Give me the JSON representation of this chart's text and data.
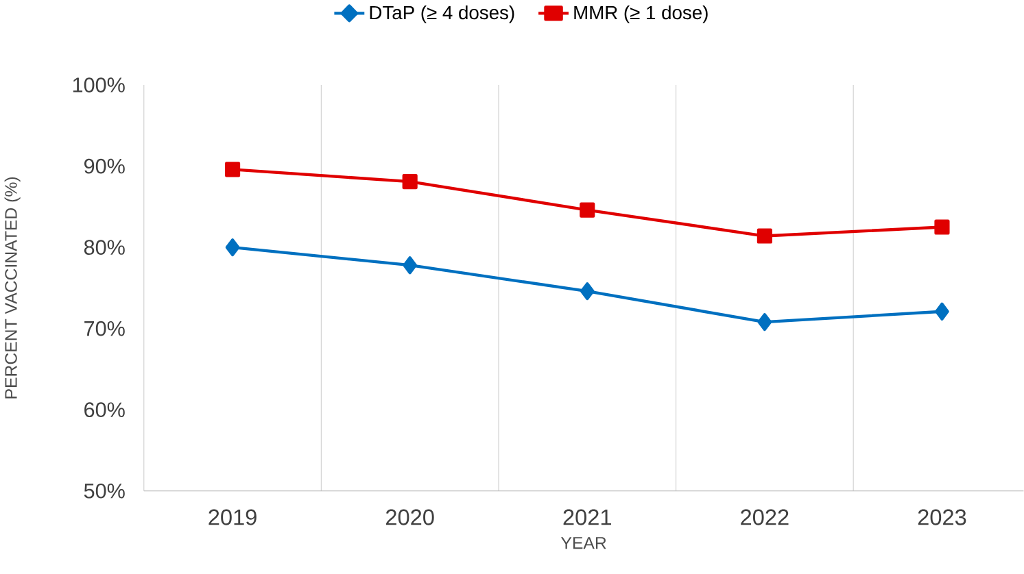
{
  "chart_data": {
    "type": "line",
    "xlabel": "YEAR",
    "ylabel": "PERCENT VACCINATED (%)",
    "categories": [
      "2019",
      "2020",
      "2021",
      "2022",
      "2023"
    ],
    "series": [
      {
        "name": "DTaP (≥ 4 doses)",
        "color": "#0070c0",
        "marker": "diamond",
        "values": [
          80.0,
          77.8,
          74.6,
          70.8,
          72.1
        ]
      },
      {
        "name": "MMR (≥ 1 dose)",
        "color": "#e00000",
        "marker": "square",
        "values": [
          89.6,
          88.1,
          84.6,
          81.4,
          82.5
        ]
      }
    ],
    "ylim": [
      50,
      100
    ],
    "yticks": [
      {
        "value": 50,
        "label": "50%"
      },
      {
        "value": 60,
        "label": "60%"
      },
      {
        "value": 70,
        "label": "70%"
      },
      {
        "value": 80,
        "label": "80%"
      },
      {
        "value": 90,
        "label": "90%"
      },
      {
        "value": 100,
        "label": "100%"
      }
    ],
    "grid": "x",
    "legend": "top",
    "line_style": "solid"
  }
}
